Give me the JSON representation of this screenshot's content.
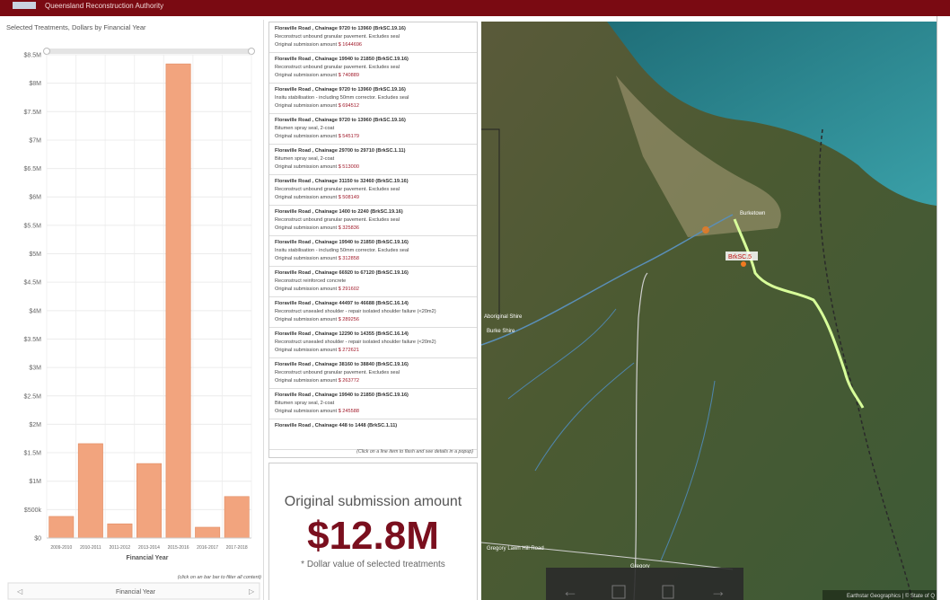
{
  "header": {
    "title": "Queensland Reconstruction Authority"
  },
  "chart_data": {
    "type": "bar",
    "title": "Selected Treatments, Dollars by Financial Year",
    "x_label": "Financial Year",
    "categories": [
      "2009-2010",
      "2010-2011",
      "2011-2012",
      "2013-2014",
      "2015-2016",
      "2016-2017",
      "2017-2018"
    ],
    "values": [
      380000,
      1660000,
      250000,
      1310000,
      8340000,
      190000,
      730000
    ],
    "color": "#f2a47e",
    "ylim": [
      0,
      8500000
    ],
    "yticks": [
      {
        "value": 0,
        "label": "$0"
      },
      {
        "value": 500000,
        "label": "$500k"
      },
      {
        "value": 1000000,
        "label": "$1M"
      },
      {
        "value": 1500000,
        "label": "$1.5M"
      },
      {
        "value": 2000000,
        "label": "$2M"
      },
      {
        "value": 2500000,
        "label": "$2.5M"
      },
      {
        "value": 3000000,
        "label": "$3M"
      },
      {
        "value": 3500000,
        "label": "$3.5M"
      },
      {
        "value": 4000000,
        "label": "$4M"
      },
      {
        "value": 4500000,
        "label": "$4.5M"
      },
      {
        "value": 5000000,
        "label": "$5M"
      },
      {
        "value": 5500000,
        "label": "$5.5M"
      },
      {
        "value": 6000000,
        "label": "$6M"
      },
      {
        "value": 6500000,
        "label": "$6.5M"
      },
      {
        "value": 7000000,
        "label": "$7M"
      },
      {
        "value": 7500000,
        "label": "$7.5M"
      },
      {
        "value": 8000000,
        "label": "$8M"
      },
      {
        "value": 8500000,
        "label": "$8.5M"
      }
    ],
    "grid": true,
    "note": "(click on an bar bar to filter all content)",
    "footer": "Financial Year"
  },
  "list": {
    "items": [
      {
        "title": "Floraville Road , Chainage 9720 to 13960 (BrkSC.19.16)",
        "description": "Reconstruct unbound granular pavement. Excludes seal",
        "label": "Original submission amount",
        "amount": "$ 1644696"
      },
      {
        "title": "Floraville Road , Chainage 19940 to 21850 (BrkSC.19.16)",
        "description": "Reconstruct unbound granular pavement. Excludes seal",
        "label": "Original submission amount",
        "amount": "$ 740889"
      },
      {
        "title": "Floraville Road , Chainage 9720 to 13960 (BrkSC.19.16)",
        "description": "Insitu stabilisation - including 50mm corrector. Excludes seal",
        "label": "Original submission amount",
        "amount": "$ 694512"
      },
      {
        "title": "Floraville Road , Chainage 9720 to 13960 (BrkSC.19.16)",
        "description": "Bitumen spray seal, 2-coat",
        "label": "Original submission amount",
        "amount": "$ 545179"
      },
      {
        "title": "Floraville Road , Chainage 29700 to 29710 (BrkSC.1.11)",
        "description": "Bitumen spray seal, 2-coat",
        "label": "Original submission amount",
        "amount": "$ 513000"
      },
      {
        "title": "Floraville Road , Chainage 31150 to 32460 (BrkSC.19.16)",
        "description": "Reconstruct unbound granular pavement. Excludes seal",
        "label": "Original submission amount",
        "amount": "$ 508149"
      },
      {
        "title": "Floraville Road , Chainage 1400 to 2240 (BrkSC.19.16)",
        "description": "Reconstruct unbound granular pavement. Excludes seal",
        "label": "Original submission amount",
        "amount": "$ 325836"
      },
      {
        "title": "Floraville Road , Chainage 19940 to 21850 (BrkSC.19.16)",
        "description": "Insitu stabilisation - including 50mm corrector. Excludes seal",
        "label": "Original submission amount",
        "amount": "$ 312858"
      },
      {
        "title": "Floraville Road , Chainage 66920 to 67120 (BrkSC.19.16)",
        "description": "Reconstruct reinforced concrete",
        "label": "Original submission amount",
        "amount": "$ 291602"
      },
      {
        "title": "Floraville Road , Chainage 44497 to 46688 (BrkSC.16.14)",
        "description": "Reconstruct unsealed shoulder - repair isolated shoulder failure (<20m2)",
        "label": "Original submission amount",
        "amount": "$ 289256"
      },
      {
        "title": "Floraville Road , Chainage 12290 to 14355 (BrkSC.16.14)",
        "description": "Reconstruct unsealed shoulder - repair isolated shoulder failure (<20m2)",
        "label": "Original submission amount",
        "amount": "$ 272621"
      },
      {
        "title": "Floraville Road , Chainage 38160 to 38840 (BrkSC.19.16)",
        "description": "Reconstruct unbound granular pavement. Excludes seal",
        "label": "Original submission amount",
        "amount": "$ 263772"
      },
      {
        "title": "Floraville Road , Chainage 19940 to 21850 (BrkSC.19.16)",
        "description": "Bitumen spray seal, 2-coat",
        "label": "Original submission amount",
        "amount": "$ 245588"
      },
      {
        "title": "Floraville Road , Chainage 448 to 1448 (BrkSC.1.11)"
      }
    ],
    "hint": "(Click on a line item to flash and see details in a popup)"
  },
  "indicator": {
    "title": "Original submission amount",
    "value": "$12.8M",
    "caption": "* Dollar value of selected treatments"
  },
  "map": {
    "labels": [
      "Burketown",
      "BrkSC.5",
      "Aboriginal Shire",
      "Burke Shire",
      "Gregory Lawn Hill Road",
      "Gregory"
    ],
    "attribution": "Earthstar Geographics | © State of Q"
  }
}
